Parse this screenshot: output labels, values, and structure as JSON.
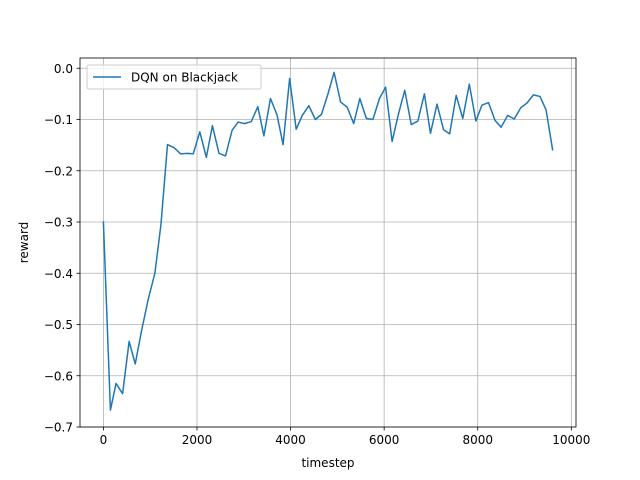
{
  "chart_data": {
    "type": "line",
    "xlabel": "timestep",
    "ylabel": "reward",
    "xlim": [
      -500,
      10100
    ],
    "ylim": [
      -0.7,
      0.02
    ],
    "xticks": [
      0,
      2000,
      4000,
      6000,
      8000,
      10000
    ],
    "xtick_labels": [
      "0",
      "2000",
      "4000",
      "6000",
      "8000",
      "10000"
    ],
    "yticks": [
      -0.7,
      -0.6,
      -0.5,
      -0.4,
      -0.3,
      -0.2,
      -0.1,
      0.0
    ],
    "ytick_labels": [
      "−0.7",
      "−0.6",
      "−0.5",
      "−0.4",
      "−0.3",
      "−0.2",
      "−0.1",
      "0.0"
    ],
    "grid": true,
    "legend_position": "upper-left",
    "series": [
      {
        "name": "DQN on Blackjack",
        "color": "#1f77b4",
        "x": [
          0,
          150,
          270,
          410,
          550,
          680,
          820,
          960,
          1100,
          1230,
          1370,
          1510,
          1650,
          1790,
          1920,
          2060,
          2200,
          2330,
          2470,
          2610,
          2750,
          2880,
          3020,
          3160,
          3300,
          3430,
          3570,
          3710,
          3840,
          3980,
          4120,
          4250,
          4390,
          4530,
          4660,
          4800,
          4930,
          5070,
          5210,
          5350,
          5480,
          5620,
          5760,
          5900,
          6030,
          6170,
          6310,
          6440,
          6580,
          6720,
          6860,
          6990,
          7130,
          7270,
          7400,
          7540,
          7680,
          7820,
          7960,
          8090,
          8230,
          8370,
          8500,
          8640,
          8780,
          8920,
          9050,
          9190,
          9330,
          9460,
          9600
        ],
        "y": [
          -0.3,
          -0.667,
          -0.615,
          -0.635,
          -0.533,
          -0.577,
          -0.51,
          -0.45,
          -0.4,
          -0.305,
          -0.149,
          -0.155,
          -0.167,
          -0.166,
          -0.167,
          -0.124,
          -0.174,
          -0.112,
          -0.166,
          -0.171,
          -0.121,
          -0.105,
          -0.108,
          -0.104,
          -0.075,
          -0.132,
          -0.059,
          -0.091,
          -0.149,
          -0.02,
          -0.119,
          -0.092,
          -0.073,
          -0.1,
          -0.09,
          -0.05,
          -0.008,
          -0.066,
          -0.076,
          -0.108,
          -0.059,
          -0.098,
          -0.1,
          -0.059,
          -0.037,
          -0.143,
          -0.088,
          -0.043,
          -0.11,
          -0.103,
          -0.05,
          -0.127,
          -0.07,
          -0.12,
          -0.128,
          -0.053,
          -0.098,
          -0.031,
          -0.103,
          -0.072,
          -0.067,
          -0.102,
          -0.115,
          -0.092,
          -0.099,
          -0.077,
          -0.068,
          -0.052,
          -0.055,
          -0.081,
          -0.159
        ]
      }
    ]
  }
}
